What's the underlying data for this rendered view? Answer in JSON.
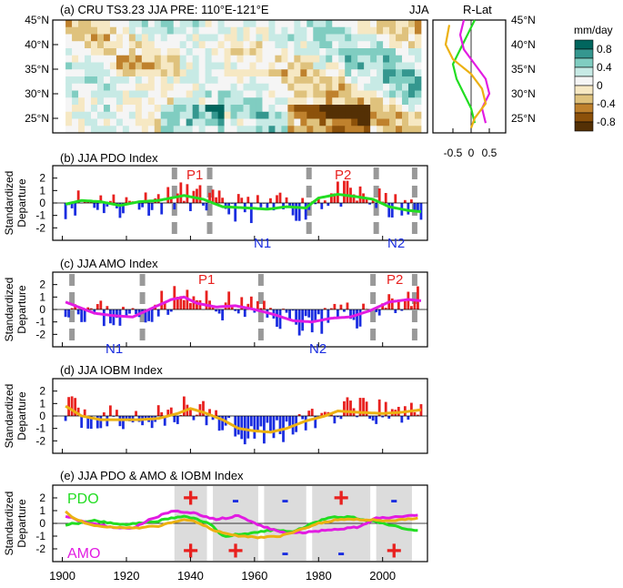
{
  "figure": {
    "panel_a_title": "(a) CRU TS3.23 JJA PRE: 110°E-121°E",
    "panel_a_jja_label": "JJA",
    "panel_a_rlat_label": "R-Lat",
    "colorbar_unit": "mm/day",
    "colorbar_ticks": [
      "0.8",
      "0.4",
      "0",
      "-0.4",
      "-0.8"
    ],
    "colorbar_colors": [
      "#01665e",
      "#35978f",
      "#80cdc1",
      "#c7eae5",
      "#f5f5f5",
      "#f6e8c3",
      "#dfc27d",
      "#bf812d",
      "#8c510a",
      "#543005"
    ],
    "lat_labels": [
      "45°N",
      "40°N",
      "35°N",
      "30°N",
      "25°N"
    ],
    "rlat_xticks": [
      "-0.5",
      "0",
      "0.5"
    ],
    "ylabel_line1": "Standardized",
    "ylabel_line2": "Departure",
    "year_ticks": [
      "1900",
      "1920",
      "1940",
      "1960",
      "1980",
      "2000"
    ],
    "pos_color": "#e8211f",
    "neg_color": "#1a2de0"
  },
  "chart_data": [
    {
      "type": "bar",
      "panel": "b",
      "title": "(b) JJA PDO Index",
      "x_start": 1901,
      "x_end": 2012,
      "ylim": [
        -3,
        3
      ],
      "yticks": [
        "2",
        "1",
        "0",
        "-1",
        "-2"
      ],
      "smooth_color": "#22dd22",
      "annotations": {
        "p1": "P1",
        "p2": "P2",
        "n1": "N1",
        "n2": "N2"
      },
      "dashed_years": [
        1935,
        1946,
        1977,
        1998,
        2010
      ],
      "smooth_keypoints": [
        [
          1901,
          -0.1
        ],
        [
          1906,
          0.2
        ],
        [
          1912,
          0.1
        ],
        [
          1918,
          -0.2
        ],
        [
          1924,
          0.1
        ],
        [
          1930,
          0.2
        ],
        [
          1938,
          0.6
        ],
        [
          1944,
          0.3
        ],
        [
          1950,
          -0.3
        ],
        [
          1958,
          -0.4
        ],
        [
          1964,
          -0.5
        ],
        [
          1970,
          -0.3
        ],
        [
          1976,
          -0.4
        ],
        [
          1980,
          0.4
        ],
        [
          1986,
          0.7
        ],
        [
          1992,
          0.5
        ],
        [
          1997,
          0.3
        ],
        [
          2002,
          -0.3
        ],
        [
          2008,
          -0.6
        ],
        [
          2012,
          -0.7
        ]
      ]
    },
    {
      "type": "bar",
      "panel": "c",
      "title": "(c) JJA AMO Index",
      "x_start": 1901,
      "x_end": 2012,
      "ylim": [
        -3,
        3
      ],
      "yticks": [
        "2",
        "1",
        "0",
        "-1",
        "-2"
      ],
      "smooth_color": "#e21ce2",
      "annotations": {
        "p1": "P1",
        "p2": "P2",
        "n1": "N1",
        "n2": "N2"
      },
      "dashed_years": [
        1903,
        1925,
        1962,
        1997,
        2010
      ],
      "smooth_keypoints": [
        [
          1901,
          0.6
        ],
        [
          1905,
          0.2
        ],
        [
          1910,
          -0.3
        ],
        [
          1916,
          -0.5
        ],
        [
          1922,
          -0.6
        ],
        [
          1928,
          0.1
        ],
        [
          1934,
          0.8
        ],
        [
          1938,
          1.0
        ],
        [
          1942,
          0.5
        ],
        [
          1948,
          0.2
        ],
        [
          1954,
          0.3
        ],
        [
          1960,
          0.0
        ],
        [
          1966,
          -0.4
        ],
        [
          1972,
          -0.9
        ],
        [
          1978,
          -1.0
        ],
        [
          1984,
          -0.7
        ],
        [
          1990,
          -0.6
        ],
        [
          1996,
          -0.1
        ],
        [
          2002,
          0.6
        ],
        [
          2008,
          0.8
        ],
        [
          2012,
          0.7
        ]
      ]
    },
    {
      "type": "bar",
      "panel": "d",
      "title": "(d) JJA IOBM Index",
      "x_start": 1901,
      "x_end": 2012,
      "ylim": [
        -3,
        3
      ],
      "yticks": [
        "2",
        "1",
        "0",
        "-1",
        "-2"
      ],
      "smooth_color": "#ecb112",
      "smooth_keypoints": [
        [
          1901,
          0.8
        ],
        [
          1906,
          0.0
        ],
        [
          1912,
          -0.3
        ],
        [
          1918,
          -0.3
        ],
        [
          1924,
          -0.3
        ],
        [
          1930,
          -0.2
        ],
        [
          1936,
          0.2
        ],
        [
          1940,
          0.6
        ],
        [
          1944,
          0.3
        ],
        [
          1950,
          -0.3
        ],
        [
          1955,
          -1.0
        ],
        [
          1960,
          -1.2
        ],
        [
          1965,
          -1.3
        ],
        [
          1970,
          -1.0
        ],
        [
          1976,
          -0.4
        ],
        [
          1982,
          0.0
        ],
        [
          1986,
          0.4
        ],
        [
          1992,
          0.3
        ],
        [
          2000,
          0.2
        ],
        [
          2006,
          0.3
        ],
        [
          2012,
          0.5
        ]
      ]
    },
    {
      "type": "line",
      "panel": "e",
      "title": "(e) JJA PDO & AMO & IOBM Index",
      "ylim": [
        -3,
        3
      ],
      "yticks": [
        "2",
        "1",
        "0",
        "-1",
        "-2"
      ],
      "xlim": [
        1897,
        2014
      ],
      "legend": {
        "pdo": "PDO",
        "amo": "AMO"
      },
      "shaded_periods": [
        [
          1935,
          1946
        ],
        [
          1947,
          1962
        ],
        [
          1963,
          1977
        ],
        [
          1978,
          1997
        ],
        [
          1998,
          2010
        ]
      ],
      "signs_top": [
        "+",
        "-",
        "-",
        "+",
        "-"
      ],
      "signs_bottom": [
        "+",
        "+",
        "-",
        "-",
        "+"
      ],
      "series": [
        {
          "name": "PDO",
          "color": "#22dd22",
          "keypoints": [
            [
              1901,
              -0.1
            ],
            [
              1910,
              0.2
            ],
            [
              1920,
              -0.1
            ],
            [
              1930,
              0.2
            ],
            [
              1938,
              0.6
            ],
            [
              1946,
              0.0
            ],
            [
              1950,
              -1.0
            ],
            [
              1958,
              -0.8
            ],
            [
              1966,
              -0.5
            ],
            [
              1972,
              -0.7
            ],
            [
              1978,
              0.0
            ],
            [
              1984,
              0.5
            ],
            [
              1990,
              0.5
            ],
            [
              1996,
              0.2
            ],
            [
              2002,
              -0.1
            ],
            [
              2008,
              -0.5
            ],
            [
              2011,
              -0.5
            ]
          ]
        },
        {
          "name": "AMO",
          "color": "#e21ce2",
          "keypoints": [
            [
              1901,
              0.6
            ],
            [
              1908,
              0.0
            ],
            [
              1916,
              -0.3
            ],
            [
              1922,
              -0.4
            ],
            [
              1928,
              0.4
            ],
            [
              1935,
              1.0
            ],
            [
              1941,
              0.8
            ],
            [
              1948,
              0.3
            ],
            [
              1955,
              0.6
            ],
            [
              1962,
              -0.2
            ],
            [
              1970,
              -0.8
            ],
            [
              1976,
              -0.7
            ],
            [
              1984,
              -0.5
            ],
            [
              1992,
              -0.3
            ],
            [
              1998,
              0.4
            ],
            [
              2005,
              0.5
            ],
            [
              2011,
              0.7
            ]
          ]
        },
        {
          "name": "IOBM",
          "color": "#ecb112",
          "keypoints": [
            [
              1901,
              1.0
            ],
            [
              1904,
              0.3
            ],
            [
              1910,
              -0.2
            ],
            [
              1920,
              -0.4
            ],
            [
              1930,
              -0.2
            ],
            [
              1938,
              0.3
            ],
            [
              1942,
              0.1
            ],
            [
              1948,
              -0.6
            ],
            [
              1955,
              -1.0
            ],
            [
              1962,
              -1.1
            ],
            [
              1968,
              -1.0
            ],
            [
              1974,
              -0.5
            ],
            [
              1980,
              0.0
            ],
            [
              1986,
              0.3
            ],
            [
              1994,
              0.3
            ],
            [
              2002,
              0.2
            ],
            [
              2011,
              0.4
            ]
          ]
        }
      ]
    }
  ]
}
